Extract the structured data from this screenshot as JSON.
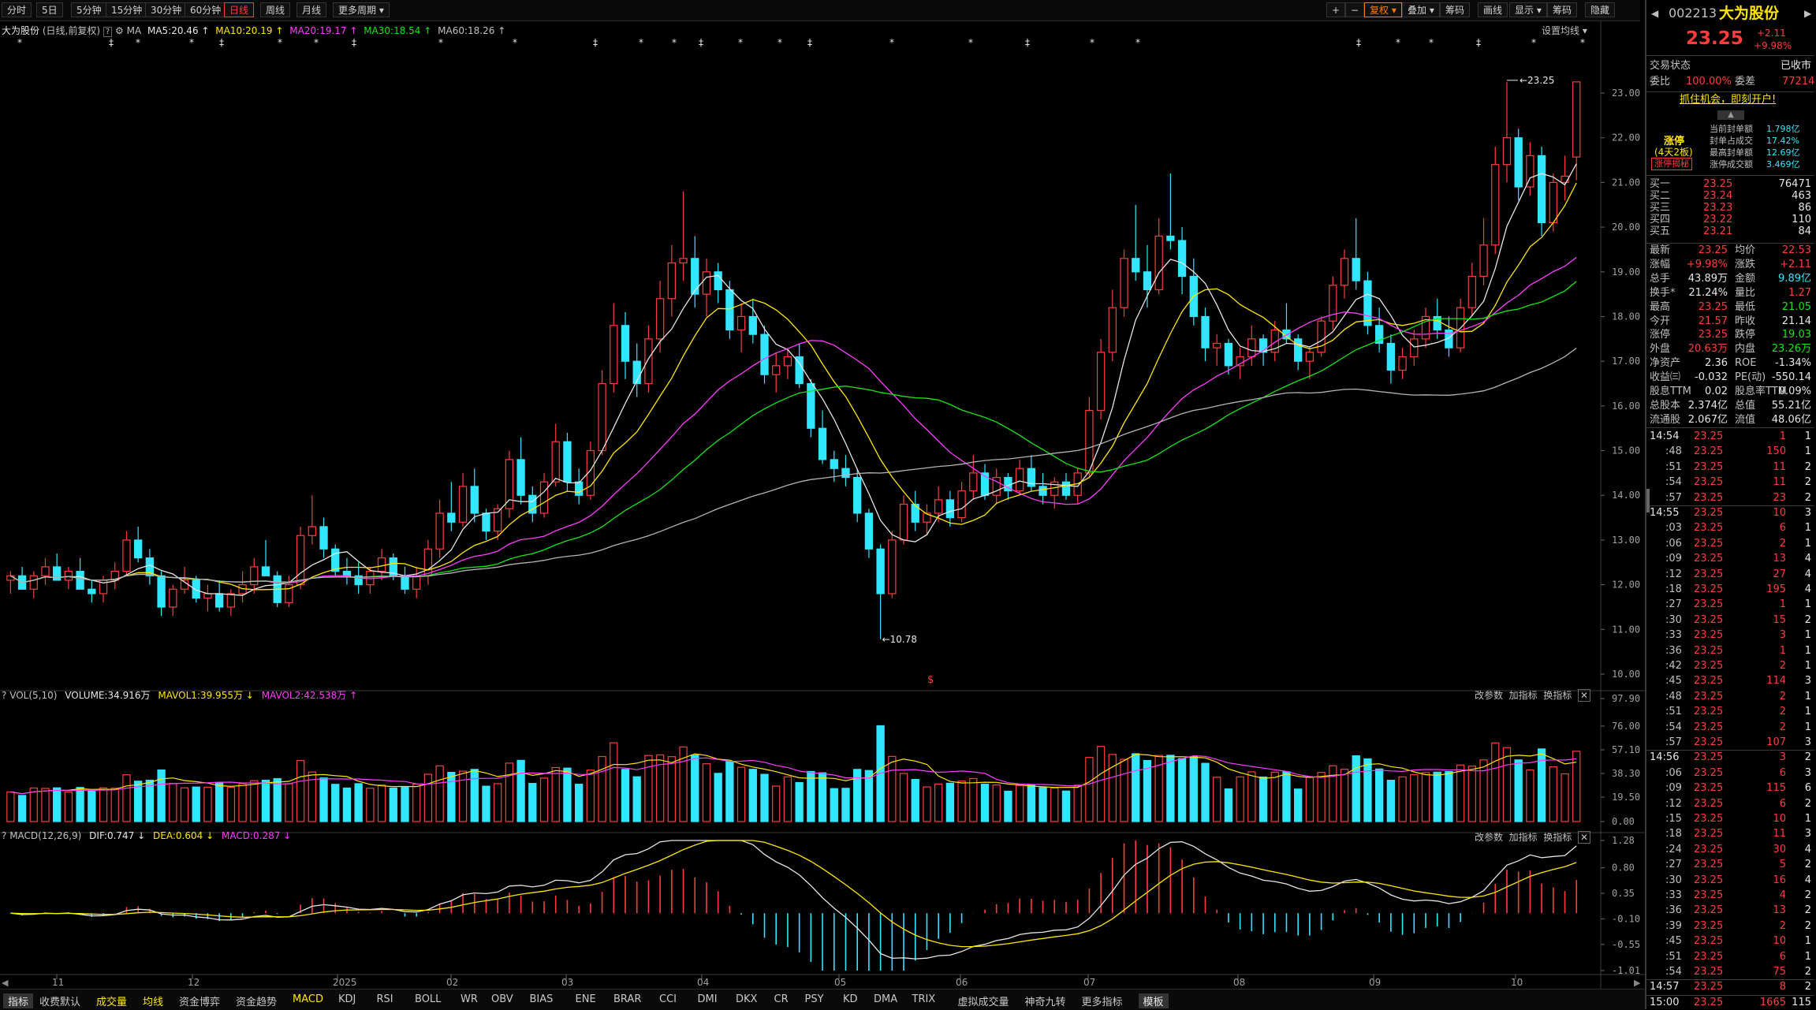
{
  "toolbar": {
    "periods": [
      "分时",
      "5日",
      "5分钟",
      "15分钟",
      "30分钟",
      "60分钟",
      "日线",
      "周线",
      "月线",
      "更多周期"
    ],
    "active_period": "日线",
    "right_buttons": [
      "+",
      "−",
      "复权",
      "叠加",
      "筹码",
      "画线",
      "显示",
      "筹码",
      "隐藏"
    ],
    "fuquan_label": "复权"
  },
  "chart_header": {
    "stock": "大为股份",
    "mode": "(日线,前复权)",
    "ma_label": "MA",
    "ma5": "MA5:20.46",
    "ma10": "MA10:20.19",
    "ma20": "MA20:19.17",
    "ma30": "MA30:18.54",
    "ma60": "MA60:18.26",
    "settings": "设置均线"
  },
  "price_axis": [
    "23.00",
    "22.00",
    "21.00",
    "20.00",
    "19.00",
    "18.00",
    "17.00",
    "16.00",
    "15.00",
    "14.00",
    "13.00",
    "12.00",
    "11.00",
    "10.00"
  ],
  "annotations": {
    "high": "23.25",
    "low": "10.78"
  },
  "vol_header": {
    "name": "VOL(5,10)",
    "volume": "VOLUME:34.916万",
    "mavol1": "MAVOL1:39.955万",
    "mavol2": "MAVOL2:42.538万",
    "btn1": "改参数",
    "btn2": "加指标",
    "btn3": "换指标"
  },
  "vol_axis": [
    "97.90",
    "76.00",
    "57.10",
    "38.30",
    "19.50",
    "0.00"
  ],
  "macd_header": {
    "name": "MACD(12,26,9)",
    "dif": "DIF:0.747",
    "dea": "DEA:0.604",
    "macd": "MACD:0.287",
    "btn1": "改参数",
    "btn2": "加指标",
    "btn3": "换指标"
  },
  "macd_axis": [
    "1.28",
    "0.80",
    "0.35",
    "-0.10",
    "-0.55",
    "-1.01"
  ],
  "date_axis": [
    "11",
    "12",
    "2025",
    "02",
    "03",
    "04",
    "05",
    "06",
    "07",
    "08",
    "09",
    "10"
  ],
  "bottom_tabs": [
    "指标",
    "收费默认",
    "成交量",
    "均线",
    "资金博弈",
    "资金趋势",
    "MACD",
    "KDJ",
    "RSI",
    "BOLL",
    "WR",
    "OBV",
    "BIAS",
    "ENE",
    "BRAR",
    "CCI",
    "DMI",
    "DKX",
    "CR",
    "PSY",
    "KD",
    "DMA",
    "TRIX",
    "虚拟成交量",
    "神奇九转",
    "更多指标",
    "模板"
  ],
  "colors": {
    "up": "#ff3c3c",
    "down": "#33e6ff",
    "ma5": "#e6e6e6",
    "ma10": "#ffe600",
    "ma20": "#ff3cff",
    "ma30": "#14e614",
    "ma60": "#b4b4b4"
  },
  "quote": {
    "code": "002213",
    "name": "大为股份",
    "price": "23.25",
    "change": "+2.11",
    "pct": "+9.98%",
    "trade_status_label": "交易状态",
    "trade_status": "已收市",
    "weibi_label": "委比",
    "weibi": "100.00%",
    "weicha_label": "委差",
    "weicha": "77214",
    "promo": "抓住机会，即刻开户!",
    "limit_title": "涨停",
    "limit_sub": "(4天2板)",
    "limit_btn": "涨停揭秘",
    "limit_stats": [
      {
        "label": "当前封单额",
        "value": "1.798亿"
      },
      {
        "label": "封单占成交",
        "value": "17.42%"
      },
      {
        "label": "最高封单额",
        "value": "12.69亿"
      },
      {
        "label": "涨停成交额",
        "value": "3.469亿"
      }
    ],
    "bids": [
      {
        "label": "买一",
        "price": "23.25",
        "vol": "76471"
      },
      {
        "label": "买二",
        "price": "23.24",
        "vol": "463"
      },
      {
        "label": "买三",
        "price": "23.23",
        "vol": "86"
      },
      {
        "label": "买四",
        "price": "23.22",
        "vol": "110"
      },
      {
        "label": "买五",
        "price": "23.21",
        "vol": "84"
      }
    ],
    "stats": [
      {
        "l1": "最新",
        "v1": "23.25",
        "c1": "red",
        "l2": "均价",
        "v2": "22.53",
        "c2": "red"
      },
      {
        "l1": "涨幅",
        "v1": "+9.98%",
        "c1": "red",
        "l2": "涨跌",
        "v2": "+2.11",
        "c2": "red"
      },
      {
        "l1": "总手",
        "v1": "43.89万",
        "c1": "white",
        "l2": "金额",
        "v2": "9.89亿",
        "c2": "cyan"
      },
      {
        "l1": "换手*",
        "v1": "21.24%",
        "c1": "white",
        "l2": "量比",
        "v2": "1.27",
        "c2": "red"
      },
      {
        "l1": "最高",
        "v1": "23.25",
        "c1": "red",
        "l2": "最低",
        "v2": "21.05",
        "c2": "green"
      },
      {
        "l1": "今开",
        "v1": "21.57",
        "c1": "red",
        "l2": "昨收",
        "v2": "21.14",
        "c2": "white"
      },
      {
        "l1": "涨停",
        "v1": "23.25",
        "c1": "red",
        "l2": "跌停",
        "v2": "19.03",
        "c2": "green"
      },
      {
        "l1": "外盘",
        "v1": "20.63万",
        "c1": "red",
        "l2": "内盘",
        "v2": "23.26万",
        "c2": "green"
      },
      {
        "l1": "净资产",
        "v1": "2.36",
        "c1": "white",
        "l2": "ROE",
        "v2": "-1.34%",
        "c2": "white"
      },
      {
        "l1": "收益㈢",
        "v1": "-0.032",
        "c1": "white",
        "l2": "PE(动)",
        "v2": "-550.14",
        "c2": "white"
      },
      {
        "l1": "股息TTM",
        "v1": "0.02",
        "c1": "white",
        "l2": "股息率TTM",
        "v2": "0.09%",
        "c2": "white"
      },
      {
        "l1": "总股本",
        "v1": "2.374亿",
        "c1": "white",
        "l2": "总值",
        "v2": "55.21亿",
        "c2": "white"
      },
      {
        "l1": "流通股",
        "v1": "2.067亿",
        "c1": "white",
        "l2": "流值",
        "v2": "48.06亿",
        "c2": "white"
      }
    ],
    "ticks": [
      {
        "t": "14:54",
        "p": "23.25",
        "v": "1",
        "n": "1"
      },
      {
        "t": ":48",
        "p": "23.25",
        "v": "150",
        "n": "1"
      },
      {
        "t": ":51",
        "p": "23.25",
        "v": "11",
        "n": "2"
      },
      {
        "t": ":54",
        "p": "23.25",
        "v": "11",
        "n": "2"
      },
      {
        "t": ":57",
        "p": "23.25",
        "v": "23",
        "n": "2"
      },
      {
        "t": "14:55",
        "p": "23.25",
        "v": "10",
        "n": "3"
      },
      {
        "t": ":03",
        "p": "23.25",
        "v": "6",
        "n": "1"
      },
      {
        "t": ":06",
        "p": "23.25",
        "v": "2",
        "n": "1"
      },
      {
        "t": ":09",
        "p": "23.25",
        "v": "13",
        "n": "4"
      },
      {
        "t": ":12",
        "p": "23.25",
        "v": "27",
        "n": "4"
      },
      {
        "t": ":18",
        "p": "23.25",
        "v": "195",
        "n": "4"
      },
      {
        "t": ":27",
        "p": "23.25",
        "v": "1",
        "n": "1"
      },
      {
        "t": ":30",
        "p": "23.25",
        "v": "15",
        "n": "2"
      },
      {
        "t": ":33",
        "p": "23.25",
        "v": "3",
        "n": "1"
      },
      {
        "t": ":36",
        "p": "23.25",
        "v": "1",
        "n": "1"
      },
      {
        "t": ":42",
        "p": "23.25",
        "v": "2",
        "n": "1"
      },
      {
        "t": ":45",
        "p": "23.25",
        "v": "114",
        "n": "3"
      },
      {
        "t": ":48",
        "p": "23.25",
        "v": "2",
        "n": "1"
      },
      {
        "t": ":51",
        "p": "23.25",
        "v": "2",
        "n": "1"
      },
      {
        "t": ":54",
        "p": "23.25",
        "v": "2",
        "n": "1"
      },
      {
        "t": ":57",
        "p": "23.25",
        "v": "107",
        "n": "3"
      },
      {
        "t": "14:56",
        "p": "23.25",
        "v": "3",
        "n": "2"
      },
      {
        "t": ":06",
        "p": "23.25",
        "v": "6",
        "n": "3"
      },
      {
        "t": ":09",
        "p": "23.25",
        "v": "115",
        "n": "6"
      },
      {
        "t": ":12",
        "p": "23.25",
        "v": "6",
        "n": "2"
      },
      {
        "t": ":15",
        "p": "23.25",
        "v": "10",
        "n": "1"
      },
      {
        "t": ":18",
        "p": "23.25",
        "v": "11",
        "n": "3"
      },
      {
        "t": ":24",
        "p": "23.25",
        "v": "30",
        "n": "4"
      },
      {
        "t": ":27",
        "p": "23.25",
        "v": "5",
        "n": "2"
      },
      {
        "t": ":30",
        "p": "23.25",
        "v": "16",
        "n": "4"
      },
      {
        "t": ":33",
        "p": "23.25",
        "v": "4",
        "n": "2"
      },
      {
        "t": ":36",
        "p": "23.25",
        "v": "13",
        "n": "2"
      },
      {
        "t": ":39",
        "p": "23.25",
        "v": "2",
        "n": "2"
      },
      {
        "t": ":45",
        "p": "23.25",
        "v": "10",
        "n": "1"
      },
      {
        "t": ":51",
        "p": "23.25",
        "v": "6",
        "n": "1"
      },
      {
        "t": ":54",
        "p": "23.25",
        "v": "75",
        "n": "2"
      },
      {
        "t": "14:57",
        "p": "23.25",
        "v": "8",
        "n": "2"
      },
      {
        "t": "15:00",
        "p": "23.25",
        "v": "1665",
        "n": "115"
      }
    ]
  },
  "chart_data": {
    "type": "candlestick",
    "price_range": [
      9.7,
      24.2
    ],
    "series_colors": {
      "up": "#ff3c3c",
      "down": "#33e6ff"
    },
    "ohlc_segments": [
      [
        12.1,
        12.3,
        11.8,
        12.2
      ],
      [
        12.2,
        12.4,
        12.0,
        11.9
      ],
      [
        11.9,
        12.3,
        11.7,
        12.2
      ],
      [
        12.2,
        12.6,
        12.0,
        12.4
      ],
      [
        12.4,
        12.7,
        12.1,
        12.1
      ],
      [
        12.1,
        12.4,
        11.9,
        12.3
      ],
      [
        12.3,
        12.6,
        12.0,
        11.9
      ],
      [
        11.9,
        12.1,
        11.6,
        11.8
      ],
      [
        11.8,
        12.2,
        11.6,
        12.1
      ],
      [
        12.1,
        12.5,
        11.9,
        12.3
      ],
      [
        12.3,
        13.2,
        12.2,
        13.0
      ],
      [
        13.0,
        13.3,
        12.5,
        12.6
      ],
      [
        12.6,
        12.8,
        12.0,
        12.2
      ],
      [
        12.2,
        12.3,
        11.3,
        11.5
      ],
      [
        11.5,
        12.0,
        11.3,
        11.9
      ],
      [
        11.9,
        12.4,
        11.8,
        12.1
      ],
      [
        12.1,
        12.2,
        11.6,
        11.7
      ],
      [
        11.7,
        12.0,
        11.4,
        11.8
      ],
      [
        11.8,
        12.1,
        11.4,
        11.5
      ],
      [
        11.5,
        11.9,
        11.3,
        11.8
      ],
      [
        11.8,
        12.3,
        11.6,
        12.0
      ],
      [
        12.0,
        12.6,
        11.8,
        12.4
      ],
      [
        12.4,
        13.0,
        12.2,
        12.2
      ],
      [
        12.2,
        12.3,
        11.5,
        11.6
      ],
      [
        11.6,
        12.2,
        11.5,
        12.0
      ],
      [
        12.0,
        13.3,
        11.9,
        13.1
      ],
      [
        13.1,
        14.0,
        12.9,
        13.3
      ],
      [
        13.3,
        13.5,
        12.6,
        12.8
      ],
      [
        12.8,
        12.9,
        12.2,
        12.3
      ],
      [
        12.3,
        12.6,
        12.0,
        12.2
      ],
      [
        12.2,
        12.5,
        11.8,
        12.0
      ],
      [
        12.0,
        12.4,
        11.8,
        12.3
      ],
      [
        12.3,
        12.8,
        12.1,
        12.6
      ],
      [
        12.6,
        12.7,
        12.1,
        12.2
      ],
      [
        12.2,
        12.4,
        11.8,
        11.9
      ],
      [
        11.9,
        12.4,
        11.7,
        12.2
      ],
      [
        12.2,
        13.0,
        12.0,
        12.8
      ],
      [
        12.8,
        13.9,
        12.6,
        13.6
      ],
      [
        13.6,
        14.3,
        13.2,
        13.4
      ],
      [
        13.4,
        14.5,
        13.3,
        14.2
      ],
      [
        14.2,
        14.6,
        13.4,
        13.6
      ],
      [
        13.6,
        13.7,
        13.0,
        13.2
      ],
      [
        13.2,
        13.8,
        13.0,
        13.7
      ],
      [
        13.7,
        15.0,
        13.5,
        14.8
      ],
      [
        14.8,
        15.3,
        13.8,
        14.0
      ],
      [
        14.0,
        14.2,
        13.4,
        13.6
      ],
      [
        13.6,
        14.5,
        13.5,
        14.3
      ],
      [
        14.3,
        15.6,
        14.2,
        15.2
      ],
      [
        15.2,
        15.4,
        14.1,
        14.3
      ],
      [
        14.3,
        14.6,
        13.8,
        14.0
      ],
      [
        14.0,
        15.2,
        13.9,
        15.0
      ],
      [
        15.0,
        16.8,
        14.9,
        16.5
      ],
      [
        16.5,
        18.3,
        16.3,
        17.8
      ],
      [
        17.8,
        18.1,
        16.6,
        17.0
      ],
      [
        17.0,
        17.4,
        16.2,
        16.5
      ],
      [
        16.5,
        17.8,
        16.3,
        17.5
      ],
      [
        17.5,
        18.8,
        17.2,
        18.4
      ],
      [
        18.4,
        19.6,
        18.0,
        19.2
      ],
      [
        19.2,
        20.8,
        18.8,
        19.3
      ],
      [
        19.3,
        19.8,
        18.2,
        18.5
      ],
      [
        18.5,
        19.3,
        18.0,
        19.0
      ],
      [
        19.0,
        19.2,
        18.3,
        18.6
      ],
      [
        18.6,
        18.8,
        17.5,
        17.7
      ],
      [
        17.7,
        18.3,
        17.2,
        18.0
      ],
      [
        18.0,
        18.4,
        17.4,
        17.6
      ],
      [
        17.6,
        17.8,
        16.5,
        16.7
      ],
      [
        16.7,
        17.2,
        16.3,
        16.9
      ],
      [
        16.9,
        17.3,
        16.6,
        17.1
      ],
      [
        17.1,
        17.4,
        16.4,
        16.5
      ],
      [
        16.5,
        16.6,
        15.3,
        15.5
      ],
      [
        15.5,
        15.9,
        14.7,
        14.8
      ],
      [
        14.8,
        15.0,
        14.3,
        14.6
      ],
      [
        14.6,
        14.9,
        14.2,
        14.4
      ],
      [
        14.4,
        14.6,
        13.4,
        13.6
      ],
      [
        13.6,
        13.7,
        12.6,
        12.8
      ],
      [
        12.8,
        12.9,
        10.78,
        11.8
      ],
      [
        11.8,
        13.2,
        11.7,
        13.0
      ],
      [
        13.0,
        14.0,
        12.9,
        13.8
      ],
      [
        13.8,
        14.1,
        13.2,
        13.4
      ],
      [
        13.4,
        13.8,
        13.1,
        13.6
      ],
      [
        13.6,
        14.2,
        13.4,
        13.9
      ],
      [
        13.9,
        14.1,
        13.3,
        13.5
      ],
      [
        13.5,
        14.3,
        13.4,
        14.1
      ],
      [
        14.1,
        14.9,
        13.9,
        14.5
      ],
      [
        14.5,
        14.7,
        13.9,
        14.0
      ],
      [
        14.0,
        14.6,
        13.8,
        14.4
      ],
      [
        14.4,
        14.5,
        13.9,
        14.1
      ],
      [
        14.1,
        14.8,
        14.0,
        14.6
      ],
      [
        14.6,
        14.9,
        14.1,
        14.2
      ],
      [
        14.2,
        14.5,
        13.8,
        14.0
      ],
      [
        14.0,
        14.4,
        13.7,
        14.3
      ],
      [
        14.3,
        14.5,
        13.9,
        14.0
      ],
      [
        14.0,
        14.6,
        13.8,
        14.5
      ],
      [
        14.5,
        16.2,
        14.4,
        15.9
      ],
      [
        15.9,
        17.5,
        15.7,
        17.2
      ],
      [
        17.2,
        18.6,
        17.0,
        18.2
      ],
      [
        18.2,
        19.5,
        18.0,
        19.3
      ],
      [
        19.3,
        20.5,
        18.8,
        19.0
      ],
      [
        19.0,
        19.6,
        18.2,
        18.6
      ],
      [
        18.6,
        20.2,
        18.5,
        19.8
      ],
      [
        19.8,
        21.2,
        19.5,
        19.7
      ],
      [
        19.7,
        20.0,
        18.5,
        18.9
      ],
      [
        18.9,
        19.3,
        17.8,
        18.0
      ],
      [
        18.0,
        18.2,
        17.0,
        17.3
      ],
      [
        17.3,
        17.6,
        16.9,
        17.4
      ],
      [
        17.4,
        17.5,
        16.7,
        16.9
      ],
      [
        16.9,
        17.3,
        16.6,
        17.1
      ],
      [
        17.1,
        17.8,
        16.9,
        17.5
      ],
      [
        17.5,
        17.6,
        16.9,
        17.2
      ],
      [
        17.2,
        17.9,
        17.0,
        17.7
      ],
      [
        17.7,
        18.3,
        17.4,
        17.5
      ],
      [
        17.5,
        17.6,
        16.8,
        17.0
      ],
      [
        17.0,
        17.3,
        16.6,
        17.2
      ],
      [
        17.2,
        18.0,
        17.1,
        17.9
      ],
      [
        17.9,
        18.9,
        17.7,
        18.7
      ],
      [
        18.7,
        19.5,
        18.4,
        19.3
      ],
      [
        19.3,
        20.2,
        18.6,
        18.8
      ],
      [
        18.8,
        19.0,
        17.6,
        17.8
      ],
      [
        17.8,
        18.2,
        17.2,
        17.4
      ],
      [
        17.4,
        17.6,
        16.5,
        16.8
      ],
      [
        16.8,
        17.3,
        16.6,
        17.1
      ],
      [
        17.1,
        17.7,
        16.9,
        17.5
      ],
      [
        17.5,
        18.2,
        17.3,
        18.0
      ],
      [
        18.0,
        18.4,
        17.5,
        17.7
      ],
      [
        17.7,
        18.0,
        17.1,
        17.3
      ],
      [
        17.3,
        18.4,
        17.2,
        18.2
      ],
      [
        18.2,
        19.2,
        18.0,
        18.9
      ],
      [
        18.9,
        20.2,
        18.7,
        19.6
      ],
      [
        19.6,
        21.8,
        19.4,
        21.4
      ],
      [
        21.4,
        23.25,
        21.0,
        22.0
      ],
      [
        22.0,
        22.2,
        20.6,
        20.9
      ],
      [
        20.9,
        21.9,
        20.7,
        21.6
      ],
      [
        21.6,
        21.8,
        19.8,
        20.1
      ],
      [
        20.1,
        21.2,
        19.9,
        21.0
      ],
      [
        21.0,
        21.6,
        20.6,
        21.14
      ],
      [
        21.57,
        23.25,
        21.05,
        23.25
      ]
    ]
  }
}
